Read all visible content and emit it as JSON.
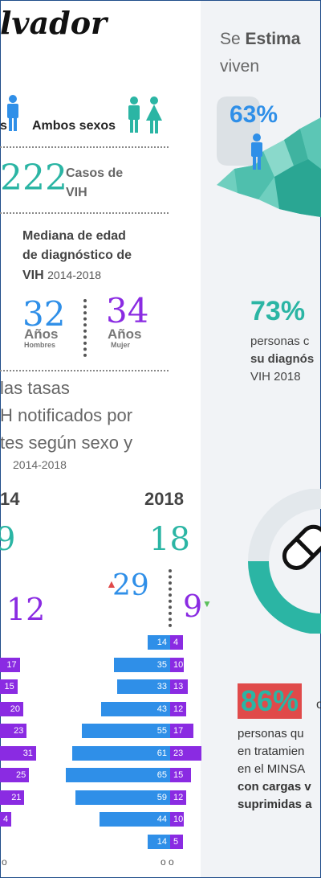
{
  "title": "lvador",
  "estima": {
    "line1_a": "Se ",
    "line1_b": "Estima",
    "line2": "viven"
  },
  "sexos": {
    "left_fragment": "s",
    "label": "Ambos sexos"
  },
  "casos": {
    "number": "222",
    "label_line1": "Casos de",
    "label_line2": "VIH"
  },
  "mediana": {
    "line1": "Mediana de edad",
    "line2": "de diagnóstico de",
    "line3_a": "VIH",
    "line3_b": "2014-2018"
  },
  "ages": {
    "hombres": {
      "value": "32",
      "label": "Años",
      "sub": "Hombres"
    },
    "mujer": {
      "value": "34",
      "label": "Años",
      "sub": "Mujer"
    }
  },
  "tasas": {
    "line1": "las tasas",
    "line2": "H notificados por",
    "line3": "tes según sexo y",
    "years": "2014-2018"
  },
  "years": {
    "left": "14",
    "right": "2018"
  },
  "left_col": {
    "total": "9",
    "female": "12"
  },
  "right_col": {
    "total": "18",
    "male": "29",
    "female": "9"
  },
  "map_pct": "63%",
  "stat73": {
    "pct": "73%",
    "l1": "personas c",
    "l2": "su diagnós",
    "l3": "VIH 2018"
  },
  "stat86": {
    "pct": "86%",
    "suffix": "o",
    "l1": "personas qu",
    "l2": "en tratamien",
    "l3": "en el MINSA",
    "l4": "con cargas v",
    "l5": "suprimidas a"
  },
  "pyramid_right": [
    {
      "m": "14",
      "f": "4"
    },
    {
      "m": "35",
      "f": "10"
    },
    {
      "m": "33",
      "f": "13"
    },
    {
      "m": "43",
      "f": "12"
    },
    {
      "m": "55",
      "f": "17"
    },
    {
      "m": "61",
      "f": "23"
    },
    {
      "m": "65",
      "f": "15"
    },
    {
      "m": "59",
      "f": "12"
    },
    {
      "m": "44",
      "f": "10"
    },
    {
      "m": "14",
      "f": "5"
    },
    {
      "m": "o",
      "f": "o"
    }
  ],
  "pyramid_left": [
    "",
    "17",
    "15",
    "20",
    "23",
    "31",
    "25",
    "21",
    "4",
    "",
    "o"
  ],
  "colors": {
    "teal": "#2bb5a4",
    "blue": "#2f8fe8",
    "purple": "#8a2be2",
    "red": "#e04a4a"
  }
}
